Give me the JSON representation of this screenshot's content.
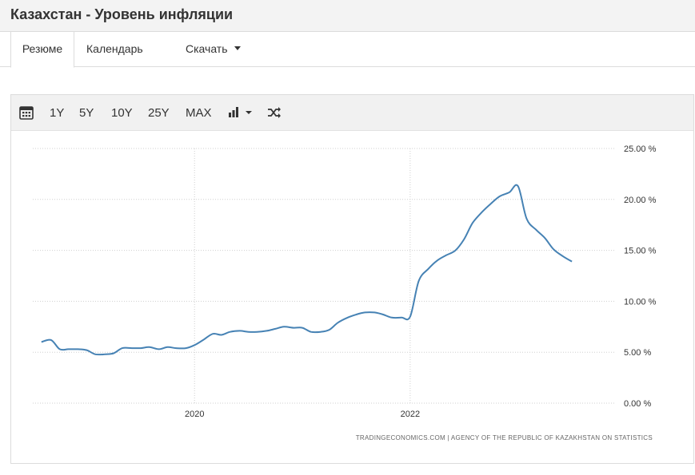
{
  "header": {
    "title": "Казахстан - Уровень инфляции"
  },
  "tabs": {
    "resume": "Резюме",
    "calendar": "Календарь",
    "download": "Скачать"
  },
  "toolbar": {
    "ranges": [
      "1Y",
      "5Y",
      "10Y",
      "25Y",
      "MAX"
    ],
    "icons": [
      "calendar-icon",
      "bar-chart-icon",
      "shuffle-icon"
    ]
  },
  "colors": {
    "series": "#4682b4",
    "grid": "#cfcfcf"
  },
  "chart_data": {
    "type": "line",
    "title": "",
    "xlabel": "",
    "ylabel": "",
    "ylim": [
      0,
      25
    ],
    "xlim": [
      2018.5,
      2023.9
    ],
    "grid": true,
    "y_ticks": [
      "25.00 %",
      "20.00 %",
      "15.00 %",
      "10.00 %",
      "5.00 %",
      "0.00 %"
    ],
    "x_ticks": [
      "2020",
      "2022"
    ],
    "source": "TRADINGECONOMICS.COM  |  AGENCY OF THE REPUBLIC OF KAZAKHSTAN ON STATISTICS",
    "series": [
      {
        "x": [
          2018.58,
          2018.67,
          2018.75,
          2018.83,
          2018.92,
          2019.0,
          2019.08,
          2019.17,
          2019.25,
          2019.33,
          2019.42,
          2019.5,
          2019.58,
          2019.67,
          2019.75,
          2019.83,
          2019.92,
          2020.0,
          2020.08,
          2020.17,
          2020.25,
          2020.33,
          2020.42,
          2020.5,
          2020.58,
          2020.67,
          2020.75,
          2020.83,
          2020.92,
          2021.0,
          2021.08,
          2021.17,
          2021.25,
          2021.33,
          2021.42,
          2021.5,
          2021.58,
          2021.67,
          2021.75,
          2021.83,
          2021.92,
          2022.0,
          2022.08,
          2022.17,
          2022.25,
          2022.33,
          2022.42,
          2022.5,
          2022.58,
          2022.67,
          2022.75,
          2022.83,
          2022.92,
          2023.0,
          2023.08,
          2023.17,
          2023.25,
          2023.33,
          2023.42,
          2023.5
        ],
        "y": [
          6.0,
          6.2,
          5.3,
          5.3,
          5.3,
          5.2,
          4.8,
          4.8,
          4.9,
          5.4,
          5.4,
          5.4,
          5.5,
          5.3,
          5.5,
          5.4,
          5.4,
          5.7,
          6.2,
          6.8,
          6.7,
          7.0,
          7.1,
          7.0,
          7.0,
          7.1,
          7.3,
          7.5,
          7.4,
          7.4,
          7.0,
          7.0,
          7.2,
          7.9,
          8.4,
          8.7,
          8.9,
          8.9,
          8.7,
          8.4,
          8.4,
          8.5,
          12.0,
          13.2,
          14.0,
          14.5,
          15.0,
          16.1,
          17.7,
          18.8,
          19.6,
          20.3,
          20.7,
          21.3,
          18.1,
          17.0,
          16.2,
          15.1,
          14.4,
          13.9
        ]
      }
    ]
  }
}
